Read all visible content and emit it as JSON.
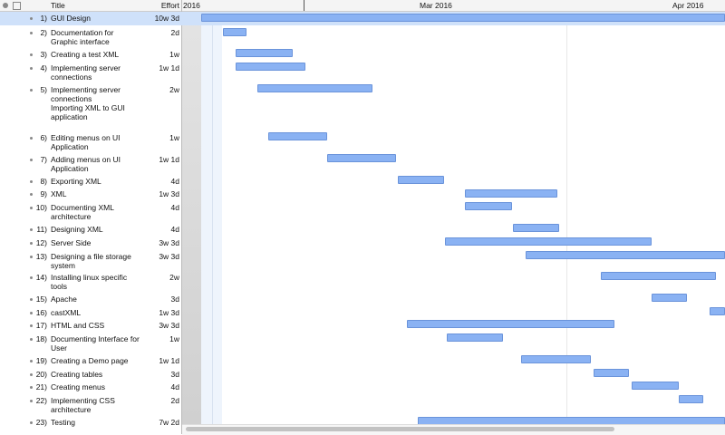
{
  "header": {
    "title_col": "Title",
    "effort_col": "Effort",
    "months": [
      "2016",
      "Mar 2016",
      "Apr 2016"
    ]
  },
  "tasks": [
    {
      "number": "1)",
      "title": "GUI Design",
      "effort": "10w 3d"
    },
    {
      "number": "2)",
      "title": "Documentation for Graphic interface",
      "effort": "2d"
    },
    {
      "number": "3)",
      "title": "Creating a test XML",
      "effort": "1w"
    },
    {
      "number": "4)",
      "title": "Implementing server connections",
      "effort": "1w 1d"
    },
    {
      "number": "5)",
      "title": "Implementing server connections\nImporting XML to GUI application",
      "effort": "2w"
    },
    {
      "number": "6)",
      "title": "Editing menus on UI Application",
      "effort": "1w"
    },
    {
      "number": "7)",
      "title": "Adding menus on UI Application",
      "effort": "1w 1d"
    },
    {
      "number": "8)",
      "title": "Exporting XML",
      "effort": "4d"
    },
    {
      "number": "9)",
      "title": "XML",
      "effort": "1w 3d"
    },
    {
      "number": "10)",
      "title": "Documenting XML architecture",
      "effort": "4d"
    },
    {
      "number": "11)",
      "title": "Designing XML",
      "effort": "4d"
    },
    {
      "number": "12)",
      "title": "Server Side",
      "effort": "3w 3d"
    },
    {
      "number": "13)",
      "title": "Designing a file storage system",
      "effort": "3w 3d"
    },
    {
      "number": "14)",
      "title": "Installing linux specific tools",
      "effort": "2w"
    },
    {
      "number": "15)",
      "title": "Apache",
      "effort": "3d"
    },
    {
      "number": "16)",
      "title": "castXML",
      "effort": "1w 3d"
    },
    {
      "number": "17)",
      "title": "HTML and CSS",
      "effort": "3w 3d"
    },
    {
      "number": "18)",
      "title": "Documenting Interface for User",
      "effort": "1w"
    },
    {
      "number": "19)",
      "title": "Creating a Demo page",
      "effort": "1w 1d"
    },
    {
      "number": "20)",
      "title": "Creating tables",
      "effort": "3d"
    },
    {
      "number": "21)",
      "title": "Creating menus",
      "effort": "4d"
    },
    {
      "number": "22)",
      "title": "Implementing CSS architecture",
      "effort": "2d"
    },
    {
      "number": "23)",
      "title": "Testing",
      "effort": "7w 2d"
    }
  ]
}
